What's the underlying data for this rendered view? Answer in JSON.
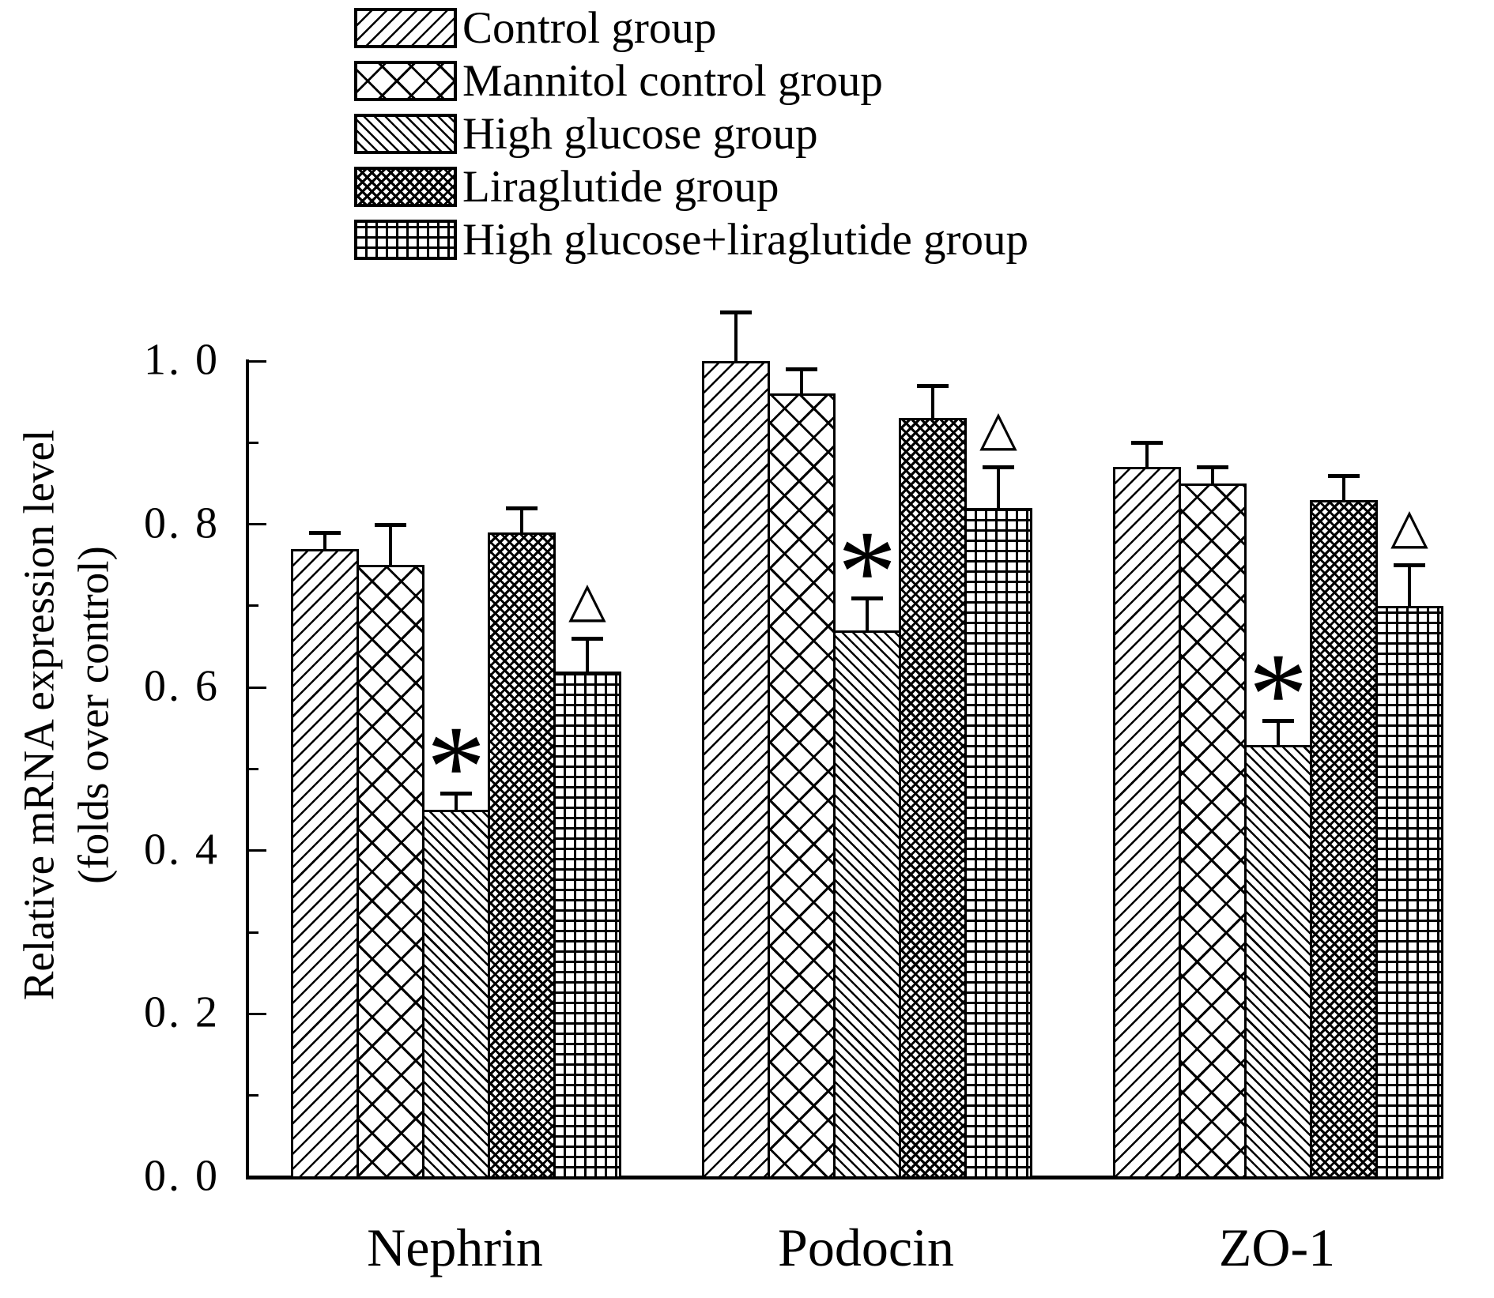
{
  "figure": {
    "background": "#ffffff",
    "ink": "#000000"
  },
  "chart_data": {
    "type": "bar",
    "title": "",
    "ylabel_line1": "Relative mRNA expression level",
    "ylabel_line2": "(folds over control)",
    "categories": [
      "Nephrin",
      "Podocin",
      "ZO-1"
    ],
    "ylim": [
      0.0,
      1.0
    ],
    "y_ticks": [
      {
        "value": 0.0,
        "label": "0. 0"
      },
      {
        "value": 0.2,
        "label": "0. 2"
      },
      {
        "value": 0.4,
        "label": "0. 4"
      },
      {
        "value": 0.6,
        "label": "0. 6"
      },
      {
        "value": 0.8,
        "label": "0. 8"
      },
      {
        "value": 1.0,
        "label": "1. 0"
      }
    ],
    "minor_tick_step": 0.1,
    "grid": false,
    "legend_position": "top-left",
    "series": [
      {
        "name": "Control group",
        "pattern": "diagonal-up",
        "values": [
          0.77,
          1.0,
          0.87
        ],
        "errors": [
          0.02,
          0.06,
          0.03
        ],
        "sig": [
          "",
          "",
          ""
        ]
      },
      {
        "name": "Mannitol control group",
        "pattern": "crosshatch-wide",
        "values": [
          0.75,
          0.96,
          0.85
        ],
        "errors": [
          0.05,
          0.03,
          0.02
        ],
        "sig": [
          "",
          "",
          ""
        ]
      },
      {
        "name": "High glucose group",
        "pattern": "diagonal-down-dense",
        "values": [
          0.45,
          0.67,
          0.53
        ],
        "errors": [
          0.02,
          0.04,
          0.03
        ],
        "sig": [
          "*",
          "*",
          "*"
        ]
      },
      {
        "name": "Liraglutide group",
        "pattern": "crosshatch-dense",
        "values": [
          0.79,
          0.93,
          0.83
        ],
        "errors": [
          0.03,
          0.04,
          0.03
        ],
        "sig": [
          "",
          "",
          ""
        ]
      },
      {
        "name": "High glucose+liraglutide group",
        "pattern": "grid",
        "values": [
          0.62,
          0.82,
          0.7
        ],
        "errors": [
          0.04,
          0.05,
          0.05
        ],
        "sig": [
          "△",
          "△",
          "△"
        ]
      }
    ]
  }
}
